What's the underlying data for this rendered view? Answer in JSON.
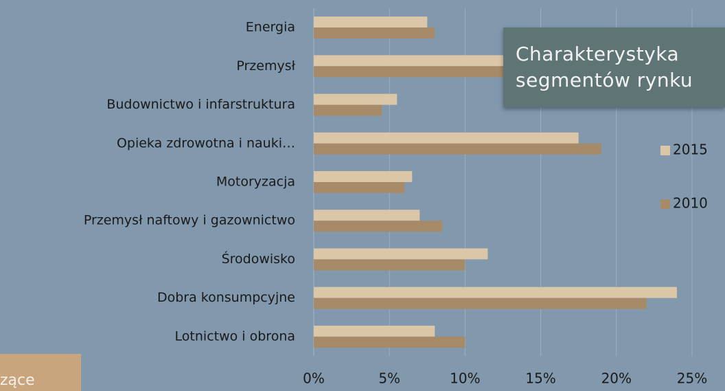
{
  "chart_data": {
    "type": "hbar",
    "title": "Charakterystyka segmentów rynku",
    "note": "zące",
    "categories": [
      "Energia",
      "Przemysł",
      "Budownictwo i infarstruktura",
      "Opieka zdrowotna i nauki…",
      "Motoryzacja",
      "Przemysł naftowy i gazownictwo",
      "Środowisko",
      "Dobra konsumpcyjne",
      "Lotnictwo i obrona"
    ],
    "series": [
      {
        "name": "2015",
        "color": "#dbc6a8",
        "values": [
          7.5,
          13,
          5.5,
          17.5,
          6.5,
          7,
          11.5,
          24,
          8
        ]
      },
      {
        "name": "2010",
        "color": "#a78a67",
        "values": [
          8,
          13.5,
          4.5,
          19,
          6,
          8.5,
          10,
          22,
          10
        ]
      }
    ],
    "xlim": [
      0,
      25
    ],
    "xticks": [
      {
        "value": 0,
        "label": "0%"
      },
      {
        "value": 5,
        "label": "5%"
      },
      {
        "value": 10,
        "label": "10%"
      },
      {
        "value": 15,
        "label": "15%"
      },
      {
        "value": 20,
        "label": "20%"
      },
      {
        "value": 25,
        "label": "25%"
      }
    ],
    "grid": true
  }
}
